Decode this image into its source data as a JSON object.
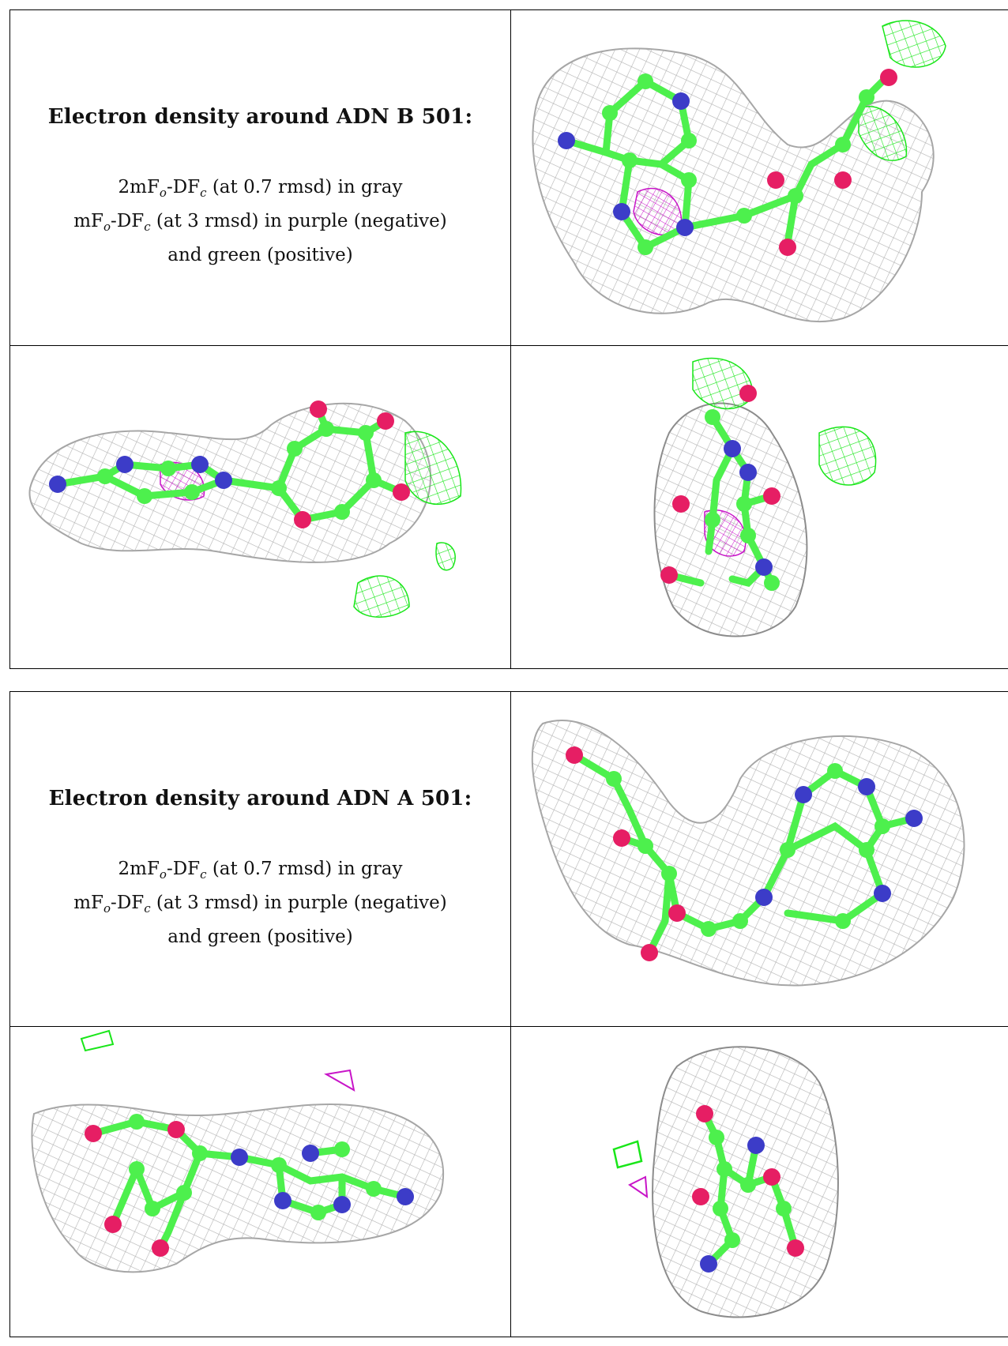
{
  "figure": {
    "blocks": [
      {
        "heading": "Electron density around ADN B 501:",
        "lines": [
          {
            "pre": "2mF",
            "s1": "o",
            "mid": "-DF",
            "s2": "c",
            "post": " (at 0.7 rmsd) in gray"
          },
          {
            "pre": "mF",
            "s1": "o",
            "mid": "-DF",
            "s2": "c",
            "post": " (at 3 rmsd) in purple (negative)"
          },
          {
            "pre": "",
            "s1": "",
            "mid": "",
            "s2": "",
            "post": "and green (positive)"
          }
        ]
      },
      {
        "heading": "Electron density around ADN A 501:",
        "lines": [
          {
            "pre": "2mF",
            "s1": "o",
            "mid": "-DF",
            "s2": "c",
            "post": " (at 0.7 rmsd) in gray"
          },
          {
            "pre": "mF",
            "s1": "o",
            "mid": "-DF",
            "s2": "c",
            "post": " (at 3 rmsd) in purple (negative)"
          },
          {
            "pre": "",
            "s1": "",
            "mid": "",
            "s2": "",
            "post": "and green (positive)"
          }
        ]
      }
    ],
    "colors": {
      "mesh_2fofc": "#a6a6a6",
      "positive_density": "#19e619",
      "negative_density": "#c815c8",
      "carbon": "#4df04d",
      "nitrogen": "#3c3cc8",
      "oxygen": "#e61e64"
    }
  }
}
